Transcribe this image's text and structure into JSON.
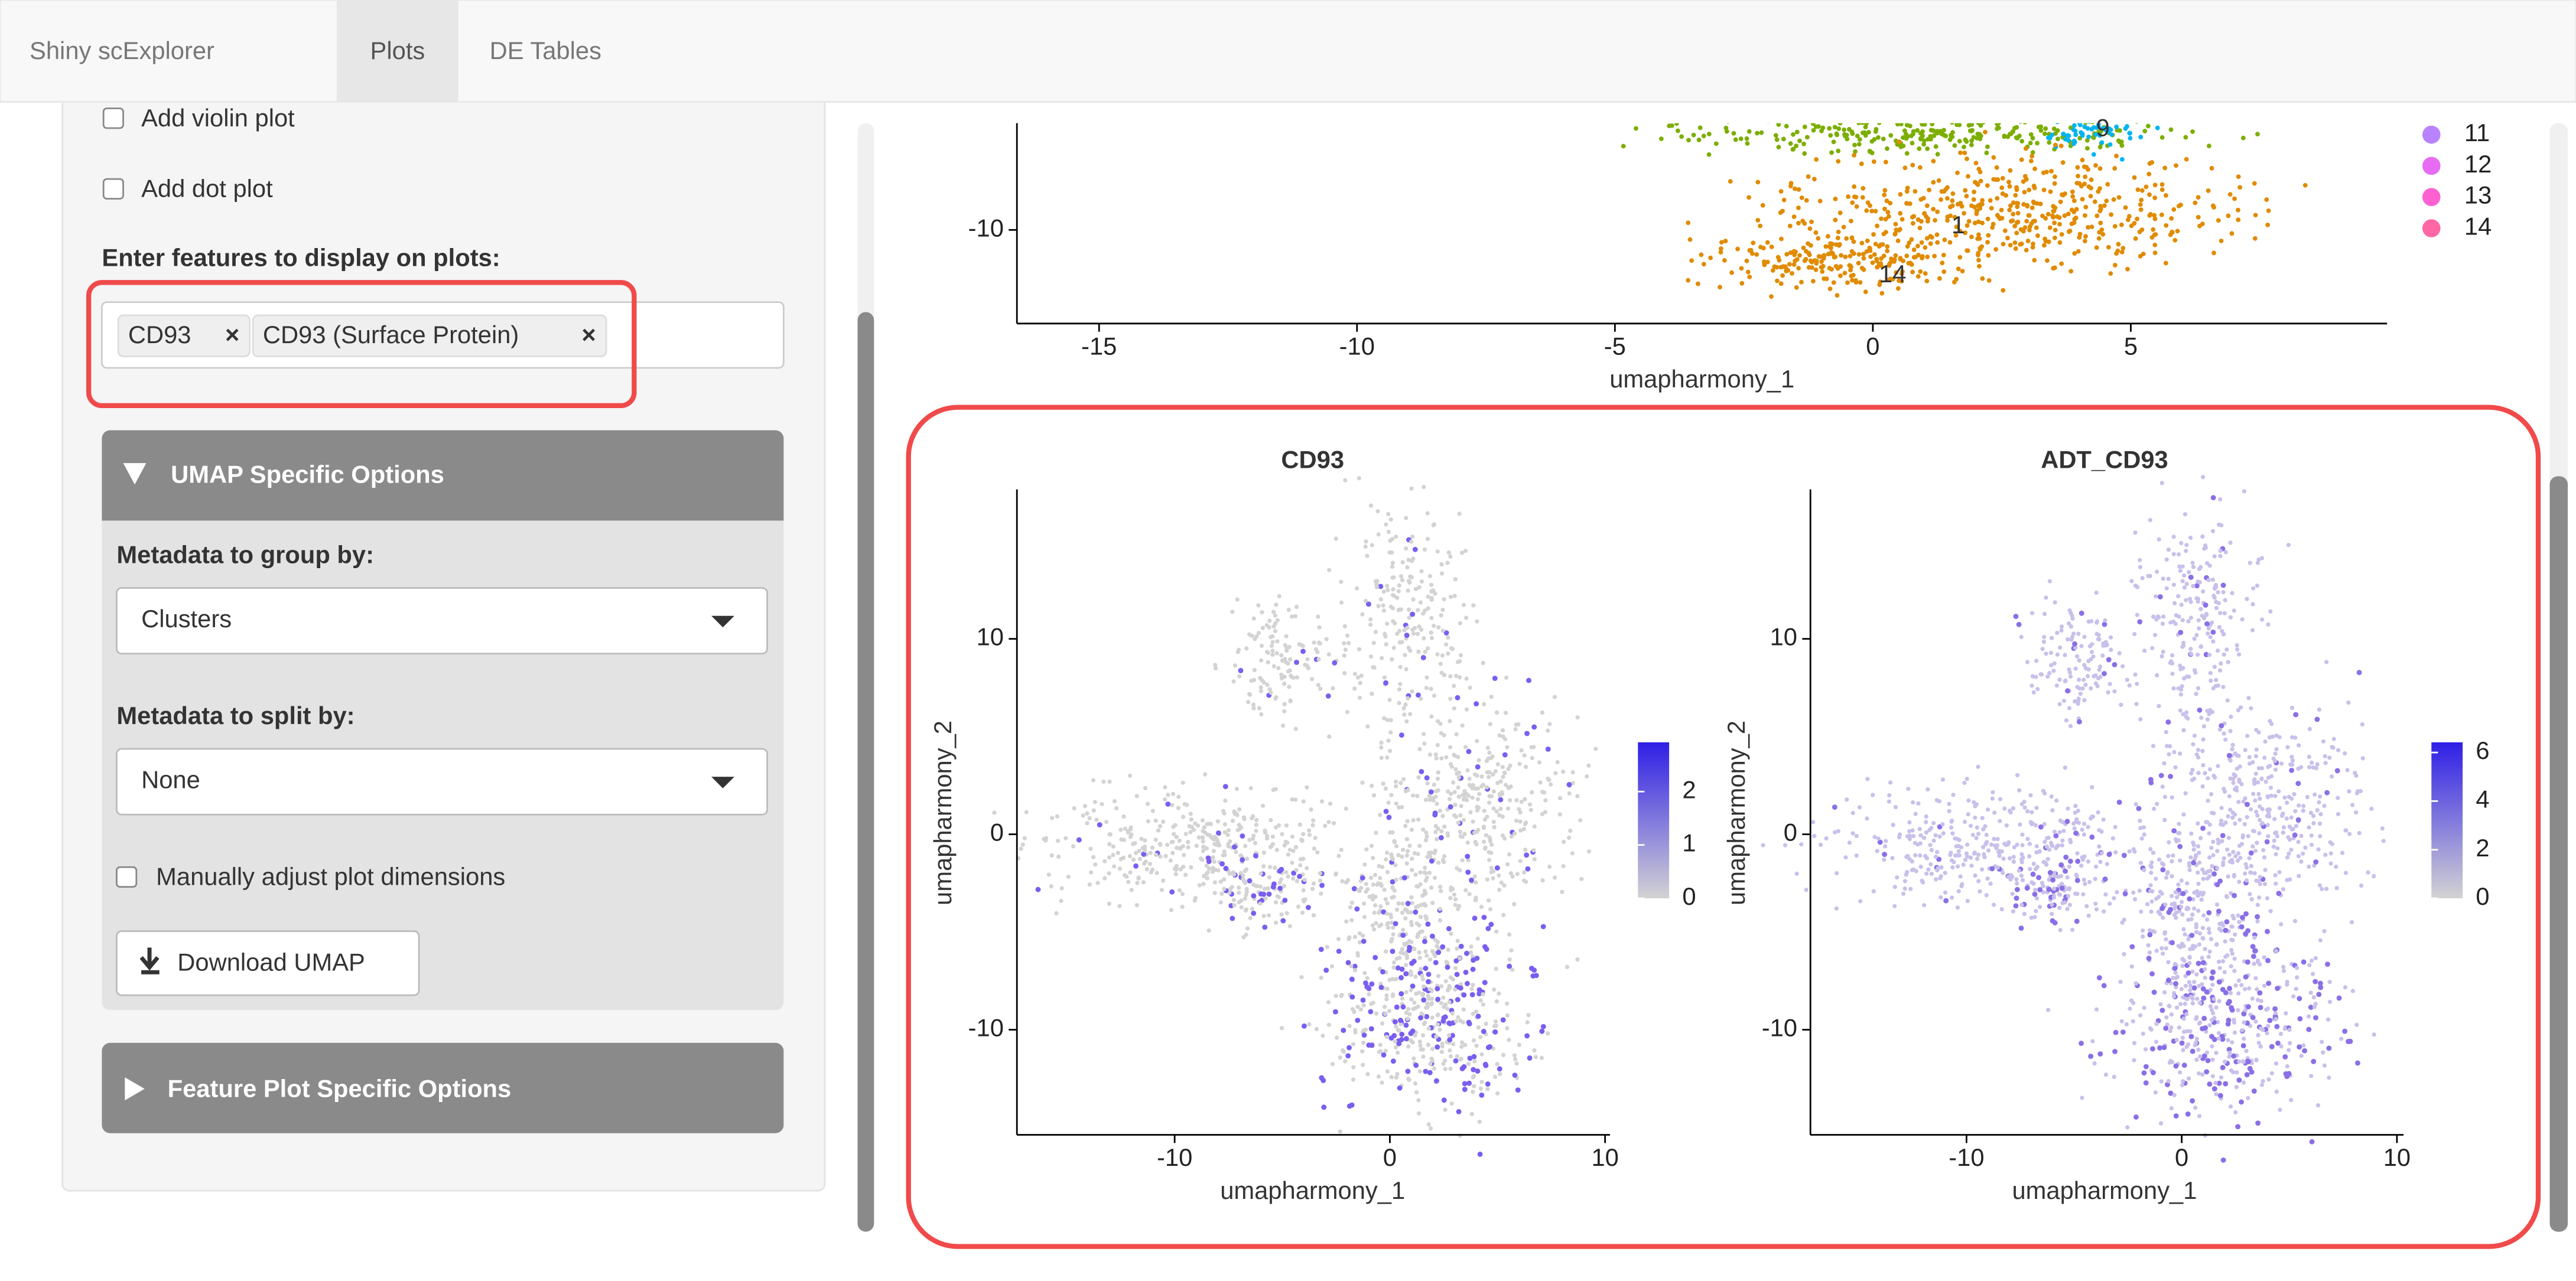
{
  "navbar": {
    "brand": "Shiny scExplorer",
    "tabs": [
      "Plots",
      "DE Tables"
    ]
  },
  "sidebar": {
    "checkboxes": [
      "Add violin plot",
      "Add dot plot"
    ],
    "features_label": "Enter features to display on plots:",
    "feature_chips": [
      "CD93",
      "CD93 (Surface Protein)"
    ],
    "chip_remove": "×",
    "umap_options": {
      "header": "UMAP Specific Options",
      "group_by_label": "Metadata to group by:",
      "group_by_value": "Clusters",
      "split_by_label": "Metadata to split by:",
      "split_by_value": "None",
      "manual_dimensions": "Manually adjust plot dimensions",
      "download_button": "Download UMAP"
    },
    "feature_plot_options": {
      "header": "Feature Plot Specific Options"
    }
  },
  "cluster_plot": {
    "x_label": "umapharmony_1",
    "xticks": [
      -15,
      -10,
      -5,
      0,
      5
    ],
    "yticks": [
      -10
    ],
    "legend": [
      {
        "label": "11",
        "color": "#b983ff"
      },
      {
        "label": "12",
        "color": "#e76bf3"
      },
      {
        "label": "13",
        "color": "#fd61d1"
      },
      {
        "label": "14",
        "color": "#ff67a4"
      }
    ],
    "cluster_labels": [
      "9",
      "1",
      "14"
    ]
  },
  "feature_plots": [
    {
      "title": "CD93",
      "x_label": "umapharmony_1",
      "y_label": "umapharmony_2",
      "xticks": [
        -10,
        0,
        10
      ],
      "yticks": [
        -10,
        0,
        10
      ],
      "colorbar_ticks": [
        0,
        1,
        2
      ],
      "high_color": "#2f1fe6"
    },
    {
      "title": "ADT_CD93",
      "x_label": "umapharmony_1",
      "y_label": "umapharmony_2",
      "xticks": [
        -10,
        0,
        10
      ],
      "yticks": [
        -10,
        0,
        10
      ],
      "colorbar_ticks": [
        0,
        2,
        4,
        6
      ],
      "high_color": "#2f1fe6"
    }
  ]
}
